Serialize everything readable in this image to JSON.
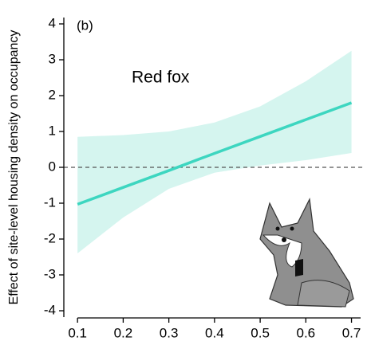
{
  "chart_data": {
    "type": "line",
    "title": "Red fox",
    "panel_label": "(b)",
    "y_label": "Effect of site-level housing density on occupancy",
    "x": [
      0.1,
      0.2,
      0.3,
      0.4,
      0.5,
      0.6,
      0.7
    ],
    "series": [
      {
        "color": "#3dd6c0",
        "values": [
          -1.03,
          -0.56,
          -0.09,
          0.39,
          0.86,
          1.33,
          1.8
        ],
        "band_color": "#d5f5ef",
        "upper": [
          0.85,
          0.9,
          1.0,
          1.25,
          1.7,
          2.4,
          3.25
        ],
        "lower": [
          -2.4,
          -1.4,
          -0.6,
          -0.15,
          0.05,
          0.2,
          0.4
        ]
      }
    ],
    "reference_line": 0,
    "xlim": [
      0.07,
      0.72
    ],
    "xticks": [
      0.1,
      0.2,
      0.3,
      0.4,
      0.5,
      0.6,
      0.7
    ],
    "ylim": [
      -4.2,
      4.3
    ],
    "yticks": [
      -4,
      -3,
      -2,
      -1,
      0,
      1,
      2,
      3,
      4
    ]
  }
}
